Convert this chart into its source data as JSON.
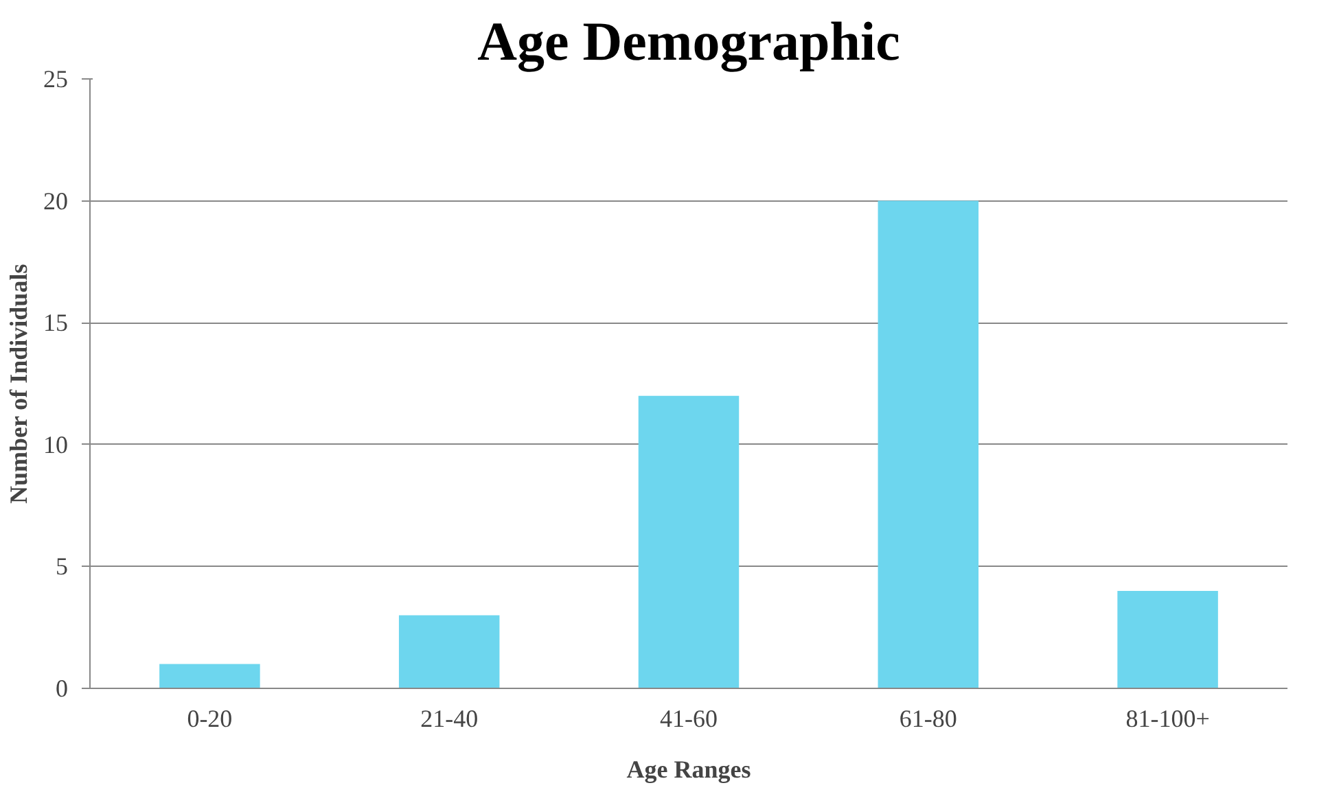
{
  "chart_data": {
    "type": "bar",
    "title": "Age Demographic",
    "xlabel": "Age Ranges",
    "ylabel": "Number of Individuals",
    "categories": [
      "0-20",
      "21-40",
      "41-60",
      "61-80",
      "81-100+"
    ],
    "values": [
      1,
      3,
      12,
      20,
      4
    ],
    "color": "#6dd6ee",
    "ylim": [
      0,
      25
    ],
    "yticks": [
      0,
      5,
      10,
      15,
      20,
      25
    ],
    "grid": "y"
  }
}
